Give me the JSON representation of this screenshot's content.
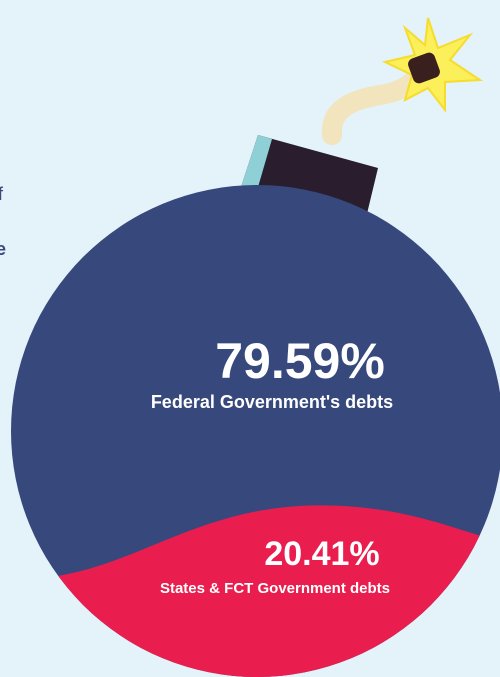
{
  "side_text": [
    "f",
    "e"
  ],
  "chart_data": {
    "type": "bomb",
    "categories": [
      "Federal Government's debts",
      "States & FCT Government debts"
    ],
    "values": [
      79.59,
      20.41
    ],
    "value_labels": [
      "79.59%",
      "20.41%"
    ],
    "colors": [
      "#36487c",
      "#e91e4e"
    ]
  }
}
